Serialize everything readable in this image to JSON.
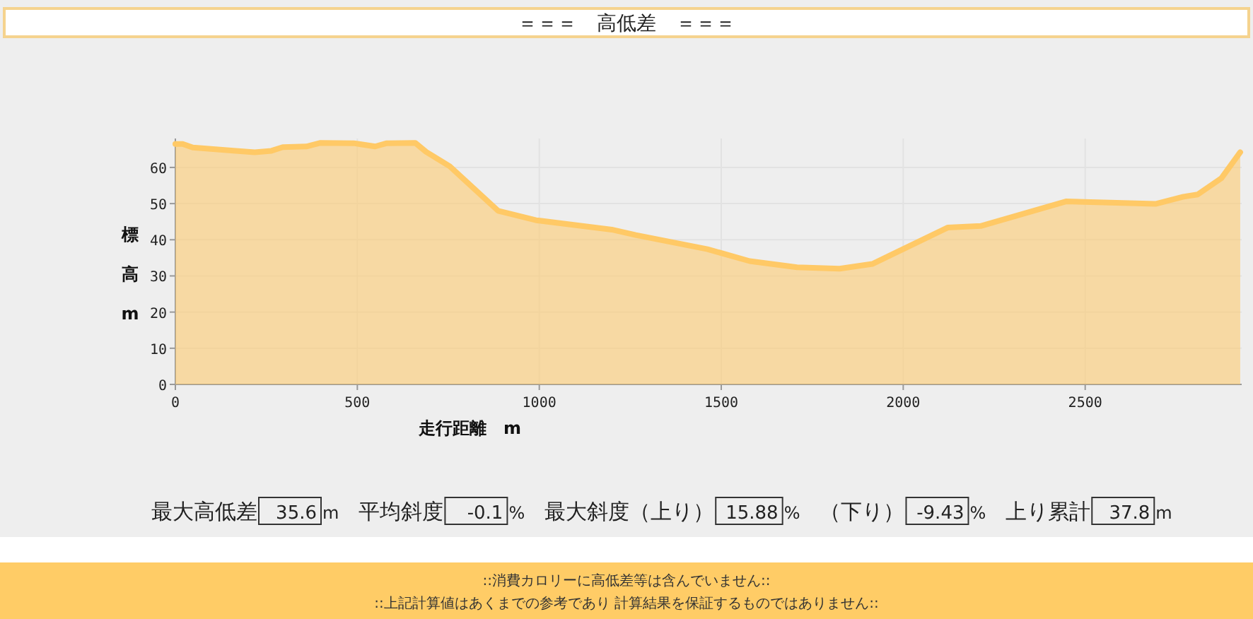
{
  "chart_data": {
    "type": "area",
    "title": "＝＝＝　高低差　＝＝＝",
    "xlabel": "走行距離　m",
    "ylabel": "標高m",
    "x": [
      0,
      20,
      48,
      166,
      218,
      264,
      295,
      360,
      399,
      490,
      549,
      581,
      659,
      689,
      754,
      887,
      991,
      1199,
      1265,
      1462,
      1578,
      1708,
      1825,
      1915,
      2123,
      2213,
      2447,
      2693,
      2770,
      2809,
      2874,
      2926
    ],
    "series": [
      {
        "color": "#ffc966",
        "values": [
          66.5,
          66.5,
          65.5,
          64.6,
          64.2,
          64.6,
          65.6,
          65.8,
          66.8,
          66.7,
          65.8,
          66.7,
          66.8,
          64.3,
          60.3,
          48,
          45.4,
          42.8,
          41.3,
          37.4,
          34.1,
          32.4,
          32.0,
          33.3,
          43.4,
          43.8,
          50.6,
          49.9,
          51.9,
          52.5,
          57.0,
          64.2
        ]
      }
    ],
    "xlim": [
      0,
      2930
    ],
    "ylim": [
      0,
      68
    ],
    "xticks": [
      0,
      500,
      1000,
      1500,
      2000,
      2500
    ],
    "yticks": [
      0,
      10,
      20,
      30,
      40,
      50,
      60
    ],
    "grid": true,
    "annotations": [
      "最大高低差",
      "35.6",
      "m",
      "平均斜度",
      "-0.1",
      "%",
      "最大斜度（上り）",
      "15.88",
      "%",
      "（下り）",
      "-9.43",
      "%",
      "上り累計",
      "37.8",
      "m",
      "::消費カロリーに高低差等は含んでいません::",
      "::上記計算値はあくまでの参考であり 計算結果を保証するものではありません::"
    ]
  }
}
